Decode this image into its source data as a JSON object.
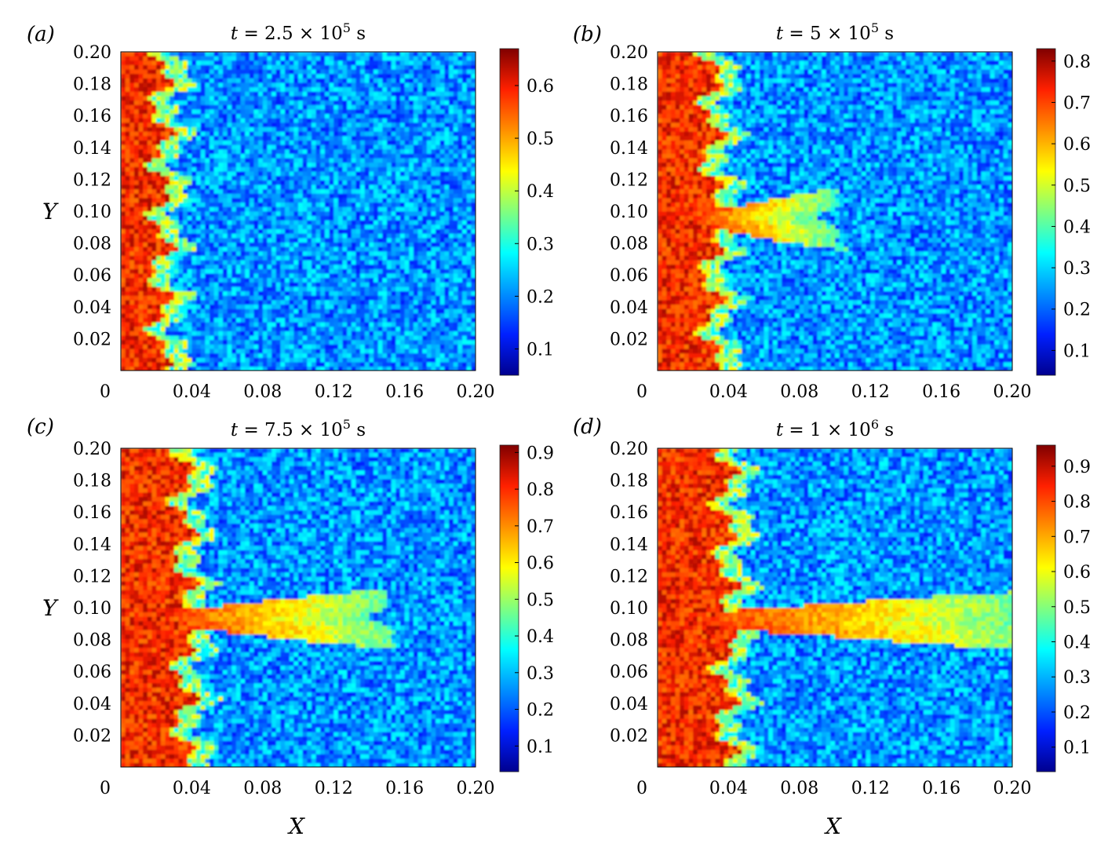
{
  "figure": {
    "axis_labels": {
      "x": "X",
      "y": "Y"
    }
  },
  "chart_data": [
    {
      "type": "heatmap",
      "panel_label": "(a)",
      "title": {
        "var": "t",
        "eq": "=",
        "mant": "2.5 × 10",
        "exp": "5",
        "unit": "s"
      },
      "xlabel": "",
      "ylabel": "Y",
      "xlim": [
        0,
        0.2
      ],
      "ylim": [
        0,
        0.2
      ],
      "x_ticks": [
        "0",
        "0.04",
        "0.08",
        "0.12",
        "0.16",
        "0.20"
      ],
      "y_ticks": [
        "0.02",
        "0.04",
        "0.06",
        "0.08",
        "0.10",
        "0.12",
        "0.14",
        "0.16",
        "0.18",
        "0.20"
      ],
      "colorbar": {
        "range": [
          0.05,
          0.67
        ],
        "ticks": [
          "0.1",
          "0.2",
          "0.3",
          "0.4",
          "0.5",
          "0.6"
        ]
      },
      "front_x": 0.022,
      "finger": null
    },
    {
      "type": "heatmap",
      "panel_label": "(b)",
      "title": {
        "var": "t",
        "eq": "=",
        "mant": "5 × 10",
        "exp": "5",
        "unit": "s"
      },
      "xlabel": "",
      "ylabel": "",
      "xlim": [
        0,
        0.2
      ],
      "ylim": [
        0,
        0.2
      ],
      "x_ticks": [
        "0",
        "0.04",
        "0.08",
        "0.12",
        "0.16",
        "0.20"
      ],
      "y_ticks": [
        "0.02",
        "0.04",
        "0.06",
        "0.08",
        "0.10",
        "0.12",
        "0.14",
        "0.16",
        "0.18",
        "0.20"
      ],
      "colorbar": {
        "range": [
          0.04,
          0.83
        ],
        "ticks": [
          "0.1",
          "0.2",
          "0.3",
          "0.4",
          "0.5",
          "0.6",
          "0.7",
          "0.8"
        ]
      },
      "front_x": 0.03,
      "finger": {
        "y": 0.095,
        "length": 0.06
      }
    },
    {
      "type": "heatmap",
      "panel_label": "(c)",
      "title": {
        "var": "t",
        "eq": "=",
        "mant": "7.5 × 10",
        "exp": "5",
        "unit": "s"
      },
      "xlabel": "X",
      "ylabel": "Y",
      "xlim": [
        0,
        0.2
      ],
      "ylim": [
        0,
        0.2
      ],
      "x_ticks": [
        "0",
        "0.04",
        "0.08",
        "0.12",
        "0.16",
        "0.20"
      ],
      "y_ticks": [
        "0.02",
        "0.04",
        "0.06",
        "0.08",
        "0.10",
        "0.12",
        "0.14",
        "0.16",
        "0.18",
        "0.20"
      ],
      "colorbar": {
        "range": [
          0.03,
          0.92
        ],
        "ticks": [
          "0.1",
          "0.2",
          "0.3",
          "0.4",
          "0.5",
          "0.6",
          "0.7",
          "0.8",
          "0.9"
        ]
      },
      "front_x": 0.035,
      "finger": {
        "y": 0.093,
        "length": 0.105
      }
    },
    {
      "type": "heatmap",
      "panel_label": "(d)",
      "title": {
        "var": "t",
        "eq": "=",
        "mant": "1 × 10",
        "exp": "6",
        "unit": "s"
      },
      "xlabel": "X",
      "ylabel": "",
      "xlim": [
        0,
        0.2
      ],
      "ylim": [
        0,
        0.2
      ],
      "x_ticks": [
        "0",
        "0.04",
        "0.08",
        "0.12",
        "0.16",
        "0.20"
      ],
      "y_ticks": [
        "0.02",
        "0.04",
        "0.06",
        "0.08",
        "0.10",
        "0.12",
        "0.14",
        "0.16",
        "0.18",
        "0.20"
      ],
      "colorbar": {
        "range": [
          0.03,
          0.96
        ],
        "ticks": [
          "0.1",
          "0.2",
          "0.3",
          "0.4",
          "0.5",
          "0.6",
          "0.7",
          "0.8",
          "0.9"
        ]
      },
      "front_x": 0.038,
      "finger": {
        "y": 0.092,
        "length": 0.16
      }
    }
  ]
}
